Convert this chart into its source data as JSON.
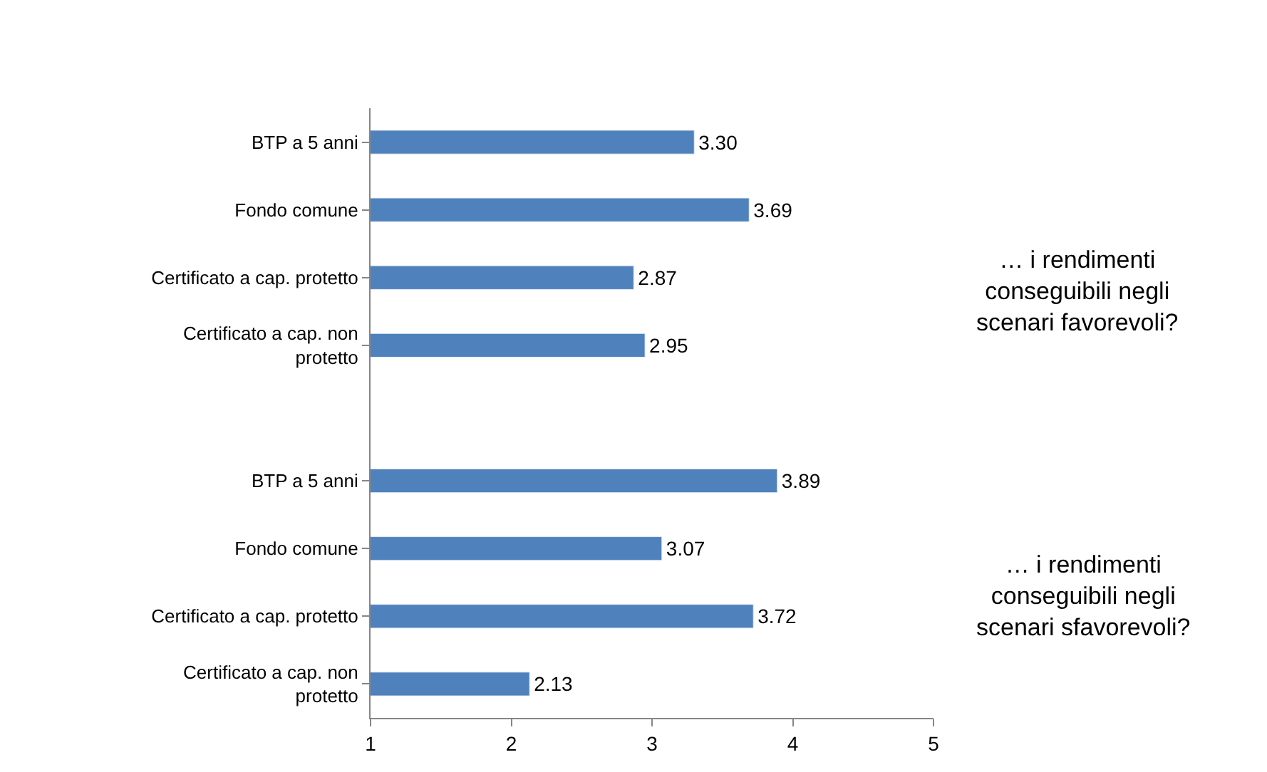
{
  "chart_data": {
    "type": "bar",
    "orientation": "horizontal",
    "categories": [
      "BTP a 5 anni",
      "Fondo comune",
      "Certificato a cap. protetto",
      "Certificato a cap. non\nprotetto",
      null,
      "BTP a 5 anni",
      "Fondo comune",
      "Certificato a cap. protetto",
      "Certificato a cap. non\nprotetto"
    ],
    "values": [
      3.3,
      3.69,
      2.87,
      2.95,
      null,
      3.89,
      3.07,
      3.72,
      2.13
    ],
    "value_labels": [
      "3.30",
      "3.69",
      "2.87",
      "2.95",
      null,
      "3.89",
      "3.07",
      "3.72",
      "2.13"
    ],
    "color": "#4f81bd",
    "xlim": [
      1,
      5
    ],
    "xticks": [
      1,
      2,
      3,
      4,
      5
    ],
    "annotations": [
      "… i rendimenti\nconseguibili negli\nscenari favorevoli?",
      "… i rendimenti\nconseguibili negli\nscenari sfavorevoli?"
    ]
  }
}
